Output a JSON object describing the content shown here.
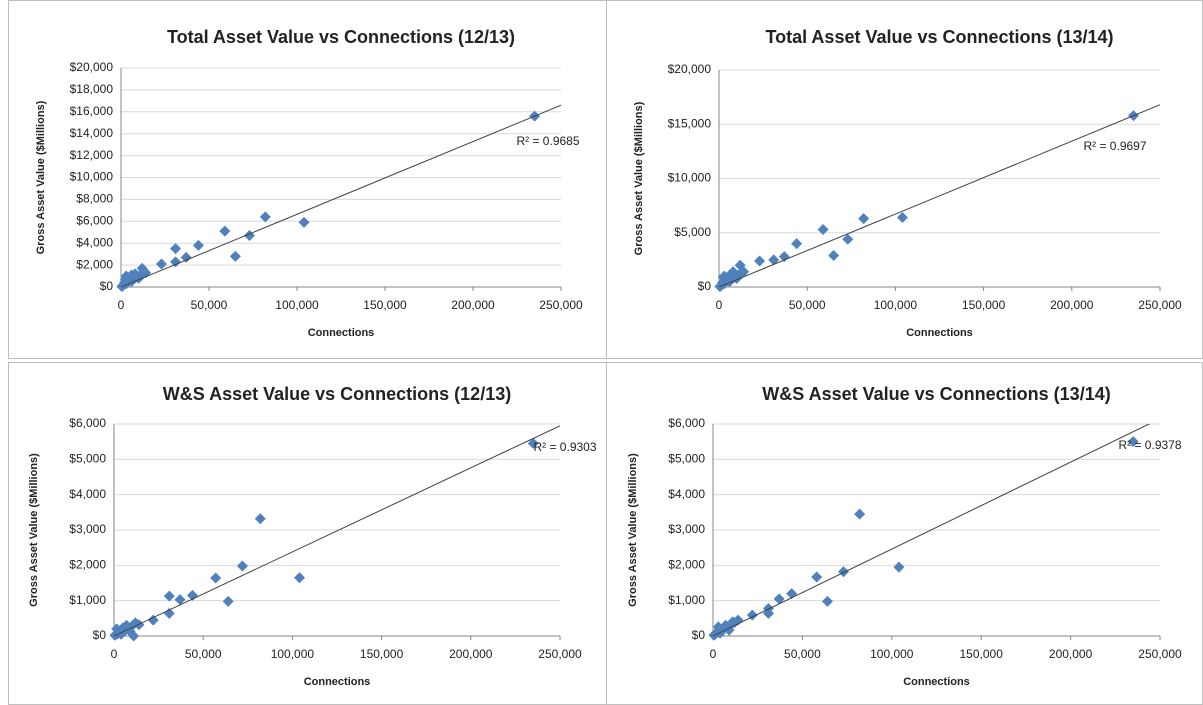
{
  "chart_data": [
    {
      "type": "scatter",
      "title": "Total Asset Value vs Connections (12/13)",
      "x_label": "Connections",
      "y_label": "Gross Asset Value ($Millions)",
      "annotation": "R² = 0.9685",
      "color": "#4f81bd",
      "grid": true,
      "x": [
        235000,
        104000,
        82000,
        73000,
        65000,
        59000,
        44000,
        37000,
        31000,
        31000,
        23000,
        14000,
        12000,
        11000,
        9000,
        8000,
        7000,
        6000,
        5000,
        4000,
        3000,
        2000,
        1500,
        1000,
        500,
        3000,
        6000,
        10000,
        13000,
        2500
      ],
      "y": [
        15600,
        5900,
        6400,
        4700,
        2800,
        5100,
        3800,
        2700,
        3500,
        2300,
        2100,
        1300,
        1700,
        1100,
        900,
        1200,
        700,
        1100,
        900,
        600,
        1000,
        400,
        200,
        100,
        50,
        300,
        500,
        800,
        1400,
        700
      ],
      "trendline": {
        "x": [
          0,
          250000
        ],
        "y": [
          0,
          16600
        ]
      },
      "xlim": [
        0,
        250000
      ],
      "xticks": [
        0,
        {
          "value": 50000,
          "label": "50,000"
        },
        {
          "value": 100000,
          "label": "100,000"
        },
        {
          "value": 150000,
          "label": "150,000"
        },
        {
          "value": 200000,
          "label": "200,000"
        },
        {
          "value": 250000,
          "label": "250,000"
        }
      ],
      "ylim": [
        0,
        20000
      ],
      "yticks": [
        {
          "value": 0,
          "label": "$0"
        },
        {
          "value": 2000,
          "label": "$2,000"
        },
        {
          "value": 4000,
          "label": "$4,000"
        },
        {
          "value": 6000,
          "label": "$6,000"
        },
        {
          "value": 8000,
          "label": "$8,000"
        },
        {
          "value": 10000,
          "label": "$10,000"
        },
        {
          "value": 12000,
          "label": "$12,000"
        },
        {
          "value": 14000,
          "label": "$14,000"
        },
        {
          "value": 16000,
          "label": "$16,000"
        },
        {
          "value": 18000,
          "label": "$18,000"
        },
        {
          "value": 20000,
          "label": "$20,000"
        }
      ]
    },
    {
      "type": "scatter",
      "title": "Total Asset Value vs Connections (13/14)",
      "x_label": "Connections",
      "y_label": "Gross Asset Value ($Millions)",
      "annotation": "R² = 0.9697",
      "color": "#4f81bd",
      "grid": true,
      "x": [
        235000,
        104000,
        82000,
        73000,
        65000,
        59000,
        44000,
        37000,
        31000,
        23000,
        14000,
        12000,
        11000,
        9000,
        8000,
        7000,
        6000,
        5000,
        4000,
        3000,
        2000,
        1500,
        1000,
        500,
        3000,
        6000,
        10000,
        13000,
        2500
      ],
      "y": [
        15800,
        6400,
        6300,
        4400,
        2900,
        5300,
        4000,
        2800,
        2500,
        2400,
        1400,
        2000,
        1100,
        900,
        1400,
        700,
        1100,
        800,
        600,
        1000,
        400,
        200,
        100,
        50,
        300,
        500,
        800,
        1300,
        900
      ],
      "trendline": {
        "x": [
          0,
          250000
        ],
        "y": [
          0,
          16800
        ]
      },
      "xlim": [
        0,
        250000
      ],
      "xticks": [
        0,
        {
          "value": 50000,
          "label": "50,000"
        },
        {
          "value": 100000,
          "label": "100,000"
        },
        {
          "value": 150000,
          "label": "150,000"
        },
        {
          "value": 200000,
          "label": "200,000"
        },
        {
          "value": 250000,
          "label": "250,000"
        }
      ],
      "ylim": [
        0,
        20000
      ],
      "yticks": [
        {
          "value": 0,
          "label": "$0"
        },
        {
          "value": 5000,
          "label": "$5,000"
        },
        {
          "value": 10000,
          "label": "$10,000"
        },
        {
          "value": 15000,
          "label": "$15,000"
        },
        {
          "value": 20000,
          "label": "$20,000"
        }
      ]
    },
    {
      "type": "scatter",
      "title": "W&S Asset Value vs Connections (12/13)",
      "x_label": "Connections",
      "y_label": "Gross Asset Value ($Millions)",
      "annotation": "R² = 0.9303",
      "color": "#4f81bd",
      "grid": true,
      "x": [
        235000,
        104000,
        82000,
        72000,
        64000,
        57000,
        44000,
        37000,
        31000,
        31000,
        22000,
        14000,
        12000,
        10000,
        11000,
        8000,
        6000,
        5000,
        3000,
        1500,
        1000,
        500,
        2000,
        7000,
        9000,
        4000
      ],
      "y": [
        5450,
        1650,
        3320,
        1980,
        980,
        1640,
        1150,
        1030,
        1130,
        640,
        450,
        320,
        370,
        280,
        0,
        200,
        150,
        230,
        100,
        200,
        40,
        20,
        60,
        300,
        130,
        50
      ],
      "trendline": {
        "x": [
          0,
          250000
        ],
        "y": [
          0,
          5950
        ]
      },
      "xlim": [
        0,
        250000
      ],
      "xticks": [
        0,
        {
          "value": 50000,
          "label": "50,000"
        },
        {
          "value": 100000,
          "label": "100,000"
        },
        {
          "value": 150000,
          "label": "150,000"
        },
        {
          "value": 200000,
          "label": "200,000"
        },
        {
          "value": 250000,
          "label": "250,000"
        }
      ],
      "ylim": [
        0,
        6000
      ],
      "yticks": [
        {
          "value": 0,
          "label": "$0"
        },
        {
          "value": 1000,
          "label": "$1,000"
        },
        {
          "value": 2000,
          "label": "$2,000"
        },
        {
          "value": 3000,
          "label": "$3,000"
        },
        {
          "value": 4000,
          "label": "$4,000"
        },
        {
          "value": 5000,
          "label": "$5,000"
        },
        {
          "value": 6000,
          "label": "$6,000"
        }
      ]
    },
    {
      "type": "scatter",
      "title": "W&S Asset Value vs Connections (13/14)",
      "x_label": "Connections",
      "y_label": "Gross Asset Value ($Millions)",
      "annotation": "R² = 0.9378",
      "color": "#4f81bd",
      "grid": true,
      "x": [
        235000,
        104000,
        82000,
        73000,
        64000,
        58000,
        44000,
        37000,
        31000,
        31000,
        22000,
        14000,
        12000,
        10000,
        8000,
        6000,
        5000,
        3000,
        1500,
        1000,
        500,
        2000,
        7000,
        9000,
        4000,
        11000
      ],
      "y": [
        5500,
        1950,
        3450,
        1820,
        980,
        1670,
        1200,
        1050,
        780,
        640,
        590,
        450,
        380,
        330,
        250,
        200,
        150,
        260,
        60,
        40,
        20,
        100,
        300,
        170,
        80,
        400
      ],
      "trendline": {
        "x": [
          0,
          250000
        ],
        "y": [
          0,
          6150
        ]
      },
      "xlim": [
        0,
        250000
      ],
      "xticks": [
        0,
        {
          "value": 50000,
          "label": "50,000"
        },
        {
          "value": 100000,
          "label": "100,000"
        },
        {
          "value": 150000,
          "label": "150,000"
        },
        {
          "value": 200000,
          "label": "200,000"
        },
        {
          "value": 250000,
          "label": "250,000"
        }
      ],
      "ylim": [
        0,
        6000
      ],
      "yticks": [
        {
          "value": 0,
          "label": "$0"
        },
        {
          "value": 1000,
          "label": "$1,000"
        },
        {
          "value": 2000,
          "label": "$2,000"
        },
        {
          "value": 3000,
          "label": "$3,000"
        },
        {
          "value": 4000,
          "label": "$4,000"
        },
        {
          "value": 5000,
          "label": "$5,000"
        },
        {
          "value": 6000,
          "label": "$6,000"
        }
      ]
    }
  ]
}
